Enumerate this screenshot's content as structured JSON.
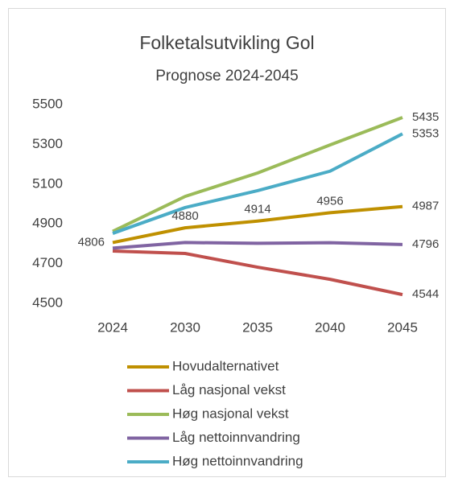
{
  "chart_data": {
    "type": "line",
    "title": "Folketalsutvikling Gol",
    "subtitle": "Prognose 2024-2045",
    "categories": [
      "2024",
      "2030",
      "2035",
      "2040",
      "2045"
    ],
    "ylim": [
      4500,
      5500
    ],
    "yticks": [
      4500,
      4700,
      4900,
      5100,
      5300,
      5500
    ],
    "grid": false,
    "legend": "bottom",
    "series": [
      {
        "name": "Hovudalternativet",
        "color": "#bf9000",
        "values": [
          4806,
          4880,
          4914,
          4956,
          4987
        ],
        "data_labels": "all"
      },
      {
        "name": "Låg nasjonal vekst",
        "color": "#c0504d",
        "values": [
          4763,
          4751,
          4682,
          4621,
          4544
        ],
        "data_labels": "last"
      },
      {
        "name": "Høg nasjonal vekst",
        "color": "#9bbb59",
        "values": [
          4862,
          5038,
          5156,
          5297,
          5435
        ],
        "data_labels": "last"
      },
      {
        "name": "Låg nettoinnvandring",
        "color": "#8064a2",
        "values": [
          4778,
          4806,
          4802,
          4805,
          4796
        ],
        "data_labels": "last"
      },
      {
        "name": "Høg nettoinnvandring",
        "color": "#4bacc6",
        "values": [
          4852,
          4982,
          5067,
          5165,
          5353
        ],
        "data_labels": "last"
      }
    ]
  }
}
